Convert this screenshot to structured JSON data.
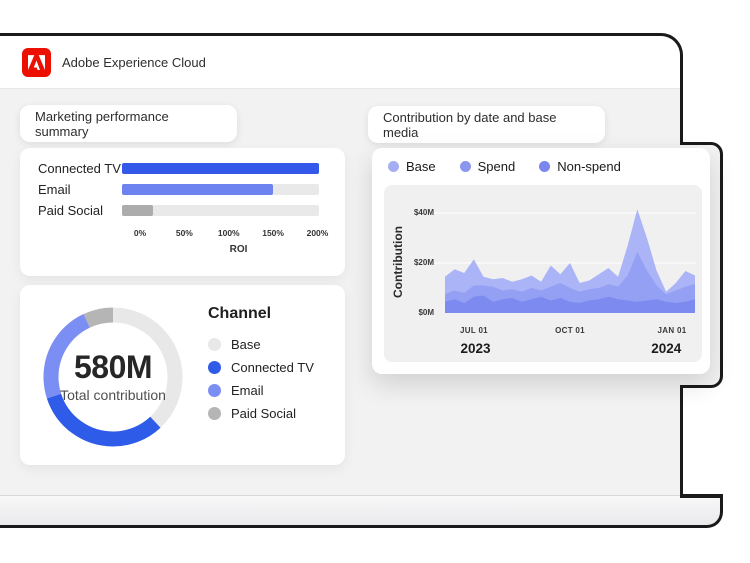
{
  "header": {
    "brand": "Adobe Experience Cloud",
    "logo_icon": "adobe-logo-icon"
  },
  "cards": {
    "summary_pill": "Marketing performance summary",
    "contribution_pill": "Contribution by date and base media"
  },
  "colors": {
    "adobe_red": "#eb1000",
    "strong_blue": "#2f5bea",
    "periwinkle": "#6d84f0",
    "light_gray": "#e9e9e9",
    "mid_gray": "#acacac",
    "screen_bg": "#f2f2f3",
    "panel_bg": "#f0f0f1"
  },
  "chart_data": [
    {
      "id": "roi_bars",
      "type": "bar",
      "orientation": "horizontal",
      "categories": [
        "Connected TV",
        "Email",
        "Paid Social"
      ],
      "values": [
        222,
        170,
        35
      ],
      "bar_colors": [
        "#3458ea",
        "#6d84f0",
        "#acacac"
      ],
      "track_color": "#e9e9e9",
      "xlabel": "ROI",
      "x_ticks": [
        "0%",
        "50%",
        "100%",
        "150%",
        "200%"
      ],
      "x_tick_values": [
        0,
        50,
        100,
        150,
        200
      ],
      "xlim": [
        0,
        222
      ]
    },
    {
      "id": "channel_donut",
      "type": "pie",
      "title": "Channel",
      "center_value": "580M",
      "center_caption": "Total contribution",
      "segments": [
        {
          "label": "Base",
          "pct": 38,
          "color": "#e8e8e8"
        },
        {
          "label": "Connected TV",
          "pct": 32,
          "color": "#2f5be9"
        },
        {
          "label": "Email",
          "pct": 23,
          "color": "#7b8ef3"
        },
        {
          "label": "Paid Social",
          "pct": 7,
          "color": "#b5b5b5"
        }
      ]
    },
    {
      "id": "contribution_area",
      "type": "area",
      "stacked": true,
      "ylabel": "Contribution",
      "ylim": [
        0,
        45
      ],
      "y_ticks": [
        {
          "label": "$0M",
          "value": 0
        },
        {
          "label": "$20M",
          "value": 20
        },
        {
          "label": "$40M",
          "value": 40
        }
      ],
      "x_ticks": [
        {
          "label": "JUL 01",
          "pos": 0.116
        },
        {
          "label": "OCT 01",
          "pos": 0.5
        },
        {
          "label": "JAN 01",
          "pos": 0.908
        }
      ],
      "year_labels": [
        {
          "label": "2023",
          "pos": 0.122
        },
        {
          "label": "2024",
          "pos": 0.885
        }
      ],
      "legend": [
        {
          "label": "Base",
          "color": "#a6aef2"
        },
        {
          "label": "Spend",
          "color": "#8b96ef"
        },
        {
          "label": "Non-spend",
          "color": "#7b87ee"
        }
      ],
      "series_bottom_up": [
        {
          "name": "Non-spend",
          "color": "#7d8bf0",
          "values": [
            4.5,
            5.5,
            4,
            6.5,
            7,
            4.5,
            5.5,
            6,
            4.5,
            5.5,
            6.5,
            5,
            6,
            4.5,
            4,
            5,
            5.5,
            6.5,
            5.5,
            5,
            4.5,
            5,
            5.5,
            4.5,
            4,
            4.5,
            5.5
          ]
        },
        {
          "name": "Spend",
          "color": "#93a0f3",
          "values": [
            3,
            3.5,
            4,
            4.5,
            4,
            6,
            3.5,
            3.5,
            4,
            4.5,
            2.5,
            5.5,
            6,
            5.5,
            4.5,
            4.5,
            4.5,
            5,
            5,
            10,
            20,
            12,
            5.5,
            3,
            5,
            6,
            6
          ]
        },
        {
          "name": "Base",
          "color": "#aab4f6",
          "values": [
            7,
            8.5,
            8,
            10.5,
            3.5,
            3,
            5,
            3,
            5,
            5,
            3.5,
            8.5,
            3.5,
            10,
            3.5,
            3.5,
            5.5,
            6.5,
            4,
            12,
            17,
            13,
            6,
            1,
            3,
            6.3,
            3.5
          ]
        }
      ]
    }
  ]
}
